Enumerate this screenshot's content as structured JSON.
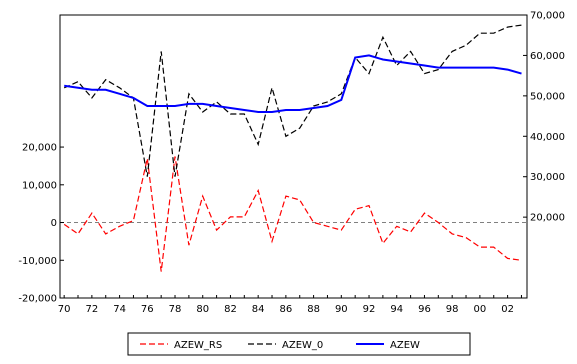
{
  "chart_data": {
    "type": "line",
    "colors": {
      "residual": "#ff0000",
      "actual": "#000000",
      "fitted": "#0000ff",
      "zero_line": "#808080"
    },
    "x": [
      1970,
      1971,
      1972,
      1973,
      1974,
      1975,
      1976,
      1977,
      1978,
      1979,
      1980,
      1981,
      1982,
      1983,
      1984,
      1985,
      1986,
      1987,
      1988,
      1989,
      1990,
      1991,
      1992,
      1993,
      1994,
      1995,
      1996,
      1997,
      1998,
      1999,
      2000,
      2001,
      2002,
      2003
    ],
    "x_tick_labels": [
      {
        "x": 1970,
        "label": "70"
      },
      {
        "x": 1972,
        "label": "72"
      },
      {
        "x": 1974,
        "label": "74"
      },
      {
        "x": 1976,
        "label": "76"
      },
      {
        "x": 1978,
        "label": "78"
      },
      {
        "x": 1980,
        "label": "80"
      },
      {
        "x": 1982,
        "label": "82"
      },
      {
        "x": 1984,
        "label": "84"
      },
      {
        "x": 1986,
        "label": "86"
      },
      {
        "x": 1988,
        "label": "88"
      },
      {
        "x": 1990,
        "label": "90"
      },
      {
        "x": 1992,
        "label": "92"
      },
      {
        "x": 1994,
        "label": "94"
      },
      {
        "x": 1996,
        "label": "96"
      },
      {
        "x": 1998,
        "label": "98"
      },
      {
        "x": 2000,
        "label": "00"
      },
      {
        "x": 2002,
        "label": "02"
      }
    ],
    "left_axis": {
      "ylim": [
        -20000,
        55000
      ],
      "ticks": [
        {
          "value": 20000,
          "label": "20,000"
        },
        {
          "value": 10000,
          "label": "10,000"
        },
        {
          "value": 0,
          "label": "0"
        },
        {
          "value": -10000,
          "label": "-10,000"
        },
        {
          "value": -20000,
          "label": "-20,000"
        }
      ]
    },
    "right_axis": {
      "ylim": [
        0,
        70000
      ],
      "ticks": [
        {
          "value": 70000,
          "label": "70,000"
        },
        {
          "value": 60000,
          "label": "60,000"
        },
        {
          "value": 50000,
          "label": "50,000"
        },
        {
          "value": 40000,
          "label": "40,000"
        },
        {
          "value": 30000,
          "label": "30,000"
        },
        {
          "value": 20000,
          "label": "20,000"
        }
      ]
    },
    "series": [
      {
        "name": "AZEW_RS",
        "axis": "left",
        "style": "dashed",
        "color": "#ff0000",
        "values": [
          -500,
          -3000,
          2500,
          -3000,
          -1000,
          500,
          17000,
          -13000,
          17500,
          -6000,
          7000,
          -2000,
          1500,
          1500,
          8500,
          -5000,
          7000,
          6000,
          0,
          -1000,
          -2000,
          3500,
          4500,
          -5500,
          -1000,
          -2500,
          2500,
          0,
          -3000,
          -4000,
          -6500,
          -6500,
          -9500,
          -10000
        ]
      },
      {
        "name": "AZEW_0",
        "axis": "right",
        "style": "dashed",
        "color": "#000000",
        "values": [
          52000,
          53500,
          49500,
          54000,
          52000,
          49500,
          30000,
          61000,
          30000,
          50500,
          46000,
          48500,
          45500,
          45500,
          38000,
          52000,
          40000,
          42000,
          47500,
          48500,
          50500,
          59500,
          55500,
          64500,
          57500,
          61000,
          55500,
          56500,
          61000,
          62500,
          65500,
          65500,
          67000,
          67500
        ]
      },
      {
        "name": "AZEW",
        "axis": "right",
        "style": "solid",
        "color": "#0000ff",
        "values": [
          52500,
          52000,
          51500,
          51500,
          50500,
          49500,
          47500,
          47500,
          47500,
          48000,
          48000,
          47500,
          47000,
          46500,
          46000,
          46000,
          46500,
          46500,
          47000,
          47500,
          49000,
          59500,
          60000,
          59000,
          58500,
          58000,
          57500,
          57000,
          57000,
          57000,
          57000,
          57000,
          56500,
          55500
        ]
      }
    ],
    "zero_line": true,
    "legend_placement": "bottom-center"
  }
}
